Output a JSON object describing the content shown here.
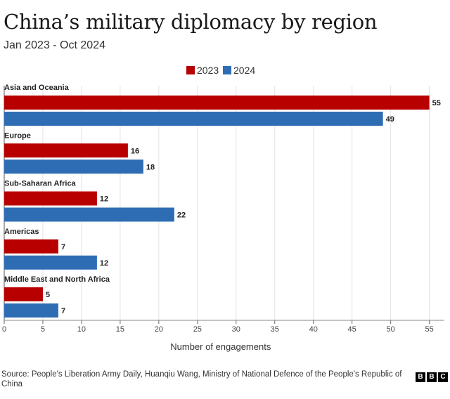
{
  "title": "China’s military diplomacy by region",
  "subtitle": "Jan 2023 - Oct 2024",
  "source": "Source: People's Liberation Army Daily, Huanqiu Wang, Ministry of National Defence of the People's Republic of China",
  "logo": [
    "B",
    "B",
    "C"
  ],
  "chart_data": {
    "type": "bar",
    "orientation": "horizontal",
    "categories": [
      "Asia and Oceania",
      "Europe",
      "Sub-Saharan Africa",
      "Americas",
      "Middle East and North Africa"
    ],
    "series": [
      {
        "name": "2023",
        "color": "#b80000",
        "values": [
          55,
          16,
          12,
          7,
          5
        ]
      },
      {
        "name": "2024",
        "color": "#2e6db4",
        "values": [
          49,
          18,
          22,
          12,
          7
        ]
      }
    ],
    "xlabel": "Number of engagements",
    "xlim": [
      0,
      56
    ],
    "xticks": [
      0,
      5,
      10,
      15,
      20,
      25,
      30,
      35,
      40,
      45,
      50,
      55
    ],
    "legend_position": "top-center",
    "grid": true
  }
}
